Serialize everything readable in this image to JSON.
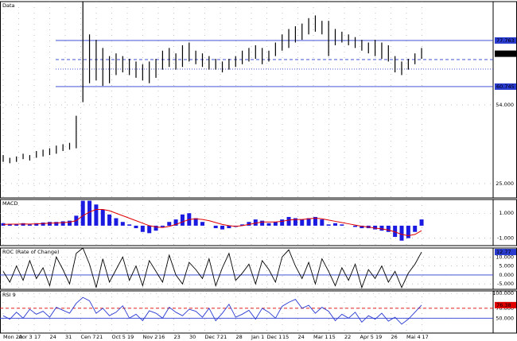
{
  "chart_data": [
    {
      "type": "ohlc",
      "title": "Data",
      "color": "#000000",
      "high": [
        35.5,
        34.5,
        35,
        36,
        35.5,
        37,
        37.5,
        38,
        39,
        39.5,
        40,
        50,
        92,
        80,
        78,
        75,
        72,
        73,
        72,
        71,
        70,
        69,
        70,
        71,
        74,
        75,
        73,
        76,
        77,
        74,
        73,
        72,
        71,
        70,
        71,
        72,
        74,
        75,
        76,
        75,
        74,
        77,
        80,
        82,
        83,
        84,
        86,
        87,
        85,
        85,
        82,
        81,
        80,
        79,
        78,
        77,
        78,
        77,
        76,
        72,
        70,
        71,
        73,
        75
      ],
      "low": [
        33,
        32.5,
        33,
        34,
        33.5,
        34.5,
        35,
        35.5,
        36,
        37,
        37.5,
        38,
        55,
        62,
        63,
        61,
        62,
        65,
        66,
        65,
        64,
        63,
        62,
        64,
        67,
        68,
        67,
        68,
        70,
        69,
        68,
        67,
        67,
        66,
        67,
        68,
        69,
        70,
        71,
        69,
        70,
        72,
        74,
        75,
        77,
        78,
        80,
        81,
        80,
        72,
        76,
        77,
        76,
        75,
        74,
        73,
        72,
        71,
        70,
        66,
        65,
        67,
        69,
        71
      ],
      "ylim": [
        19.7,
        92.1
      ],
      "yticks": [
        {
          "value": 54,
          "label": "54.000"
        },
        {
          "value": 25,
          "label": "25.000"
        }
      ],
      "levels": [
        {
          "value": 77.763,
          "style": "solid",
          "color": "#2a3bd0",
          "box": true
        },
        {
          "value": 70.72,
          "style": "dashed",
          "color": "#2a3bd0",
          "box": false
        },
        {
          "value": 67.2,
          "style": "dotted",
          "color": "#2a3bd0",
          "box": false
        },
        {
          "value": 60.745,
          "style": "solid",
          "color": "#2a3bd0",
          "box": true
        }
      ],
      "last_value": 72.876,
      "last_color": "#000000",
      "grid": true
    },
    {
      "type": "macd",
      "title": "MACD",
      "color": "#1a1ae0",
      "signal_color": "#e00000",
      "values": [
        0.2,
        0.15,
        0.1,
        0.2,
        0.1,
        0.2,
        0.25,
        0.3,
        0.3,
        0.35,
        0.4,
        0.8,
        2.0,
        2.0,
        1.7,
        1.3,
        0.9,
        0.6,
        0.3,
        0.1,
        -0.2,
        -0.5,
        -0.6,
        -0.4,
        -0.1,
        0.3,
        0.5,
        0.9,
        1.0,
        0.6,
        0.3,
        0.0,
        -0.2,
        -0.3,
        -0.2,
        -0.1,
        0.1,
        0.3,
        0.5,
        0.4,
        0.2,
        0.3,
        0.5,
        0.7,
        0.6,
        0.5,
        0.6,
        0.7,
        0.5,
        0.1,
        0.2,
        0.1,
        0.0,
        -0.1,
        -0.2,
        -0.2,
        -0.3,
        -0.4,
        -0.5,
        -0.9,
        -1.2,
        -1.0,
        -0.5,
        0.5
      ],
      "signal": [
        0.1,
        0.12,
        0.12,
        0.14,
        0.13,
        0.15,
        0.17,
        0.2,
        0.22,
        0.25,
        0.28,
        0.4,
        0.8,
        1.1,
        1.3,
        1.3,
        1.2,
        1.0,
        0.8,
        0.6,
        0.4,
        0.2,
        0.0,
        -0.1,
        -0.15,
        -0.05,
        0.1,
        0.3,
        0.5,
        0.55,
        0.5,
        0.4,
        0.25,
        0.1,
        0.0,
        -0.05,
        0.0,
        0.1,
        0.2,
        0.3,
        0.3,
        0.3,
        0.35,
        0.45,
        0.5,
        0.5,
        0.55,
        0.6,
        0.55,
        0.45,
        0.35,
        0.25,
        0.15,
        0.05,
        -0.05,
        -0.1,
        -0.2,
        -0.25,
        -0.35,
        -0.5,
        -0.7,
        -0.8,
        -0.7,
        -0.4
      ],
      "ylim": [
        -1.6,
        2.1
      ],
      "yticks": [
        {
          "value": 1,
          "label": "1.000"
        },
        {
          "value": -1,
          "label": "-1.000"
        }
      ],
      "grid": true
    },
    {
      "type": "line",
      "title": "ROC (Rate of Change)",
      "color": "#000000",
      "values": [
        2,
        -4,
        5,
        -3,
        8,
        -2,
        4,
        -6,
        10,
        3,
        -5,
        12,
        15,
        6,
        -7,
        9,
        -4,
        3,
        10,
        -3,
        5,
        -6,
        8,
        2,
        -4,
        11,
        0,
        -5,
        7,
        3,
        -2,
        9,
        -6,
        4,
        12,
        -3,
        1,
        6,
        -5,
        8,
        3,
        -4,
        10,
        14,
        5,
        -2,
        7,
        -5,
        9,
        2,
        -6,
        4,
        -3,
        6,
        -7,
        3,
        -2,
        5,
        -4,
        2,
        -7,
        1,
        6,
        12.77
      ],
      "ylim": [
        -8,
        15
      ],
      "yticks": [
        {
          "value": 10,
          "label": "10.000"
        },
        {
          "value": 5,
          "label": "5.000"
        },
        {
          "value": 0,
          "label": "0.000"
        },
        {
          "value": -5,
          "label": "-5.000"
        }
      ],
      "levels": [
        {
          "value": 0,
          "style": "solid",
          "color": "#2a3bd0",
          "box": false
        }
      ],
      "last_value": 12.77,
      "last_color": "#2a3bd0",
      "grid": true
    },
    {
      "type": "line",
      "title": "RSI 9",
      "color": "#2a3bd0",
      "values": [
        55,
        48,
        62,
        50,
        68,
        58,
        64,
        52,
        72,
        66,
        60,
        80,
        92,
        85,
        60,
        70,
        55,
        62,
        75,
        50,
        58,
        45,
        65,
        60,
        50,
        72,
        62,
        55,
        68,
        64,
        52,
        70,
        45,
        60,
        78,
        52,
        58,
        66,
        48,
        70,
        62,
        50,
        74,
        82,
        88,
        70,
        76,
        60,
        72,
        64,
        45,
        58,
        50,
        62,
        42,
        55,
        48,
        60,
        44,
        52,
        38,
        48,
        62,
        76.38
      ],
      "ylim": [
        20,
        105
      ],
      "yticks": [
        {
          "value": 100,
          "label": "100.000"
        },
        {
          "value": 70,
          "label": "70.000"
        },
        {
          "value": 50,
          "label": "50.000"
        }
      ],
      "levels": [
        {
          "value": 70,
          "style": "dashed",
          "color": "#e00000",
          "box": false
        },
        {
          "value": 50,
          "style": "solid",
          "color": "#2a3bd0",
          "box": false
        }
      ],
      "last_value": 76.38,
      "last_color": "#e00000",
      "grid": true
    }
  ],
  "x_labels": [
    "Mon 20",
    "Aor 3",
    "17",
    "24",
    "31",
    "Cen 7",
    "21",
    "Oct 5",
    "19",
    "Nov 2",
    "16",
    "23",
    "30",
    "Dec 7",
    "21",
    "28",
    "Jan 1",
    "Dec 1",
    "15",
    "24",
    "Mar 1",
    "15",
    "22",
    "Apr 5",
    "19",
    "26",
    "Mai 4",
    "17"
  ]
}
